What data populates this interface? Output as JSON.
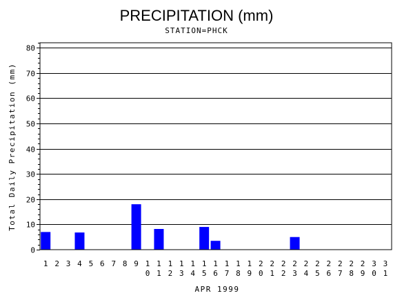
{
  "chart_data": {
    "type": "bar",
    "title": "PRECIPITATION (mm)",
    "subtitle": "STATION=PHCK",
    "xlabel": "APR 1999",
    "ylabel": "Total Daily Precipitation (mm)",
    "ylim": [
      0,
      82
    ],
    "yticks": [
      0,
      10,
      20,
      30,
      40,
      50,
      60,
      70,
      80
    ],
    "grid": true,
    "bar_color": "#0000ff",
    "categories": [
      "1",
      "2",
      "3",
      "4",
      "5",
      "6",
      "7",
      "8",
      "9",
      "10",
      "11",
      "12",
      "13",
      "14",
      "15",
      "16",
      "17",
      "18",
      "19",
      "20",
      "21",
      "22",
      "23",
      "24",
      "25",
      "26",
      "27",
      "28",
      "29",
      "30",
      "31"
    ],
    "values": [
      7,
      0,
      0,
      6.8,
      0,
      0,
      0,
      0,
      18,
      0,
      8.2,
      0,
      0,
      0,
      9,
      3.5,
      0,
      0,
      0,
      0,
      0,
      0,
      5,
      0,
      0,
      0,
      0,
      0,
      0,
      0,
      0
    ]
  }
}
